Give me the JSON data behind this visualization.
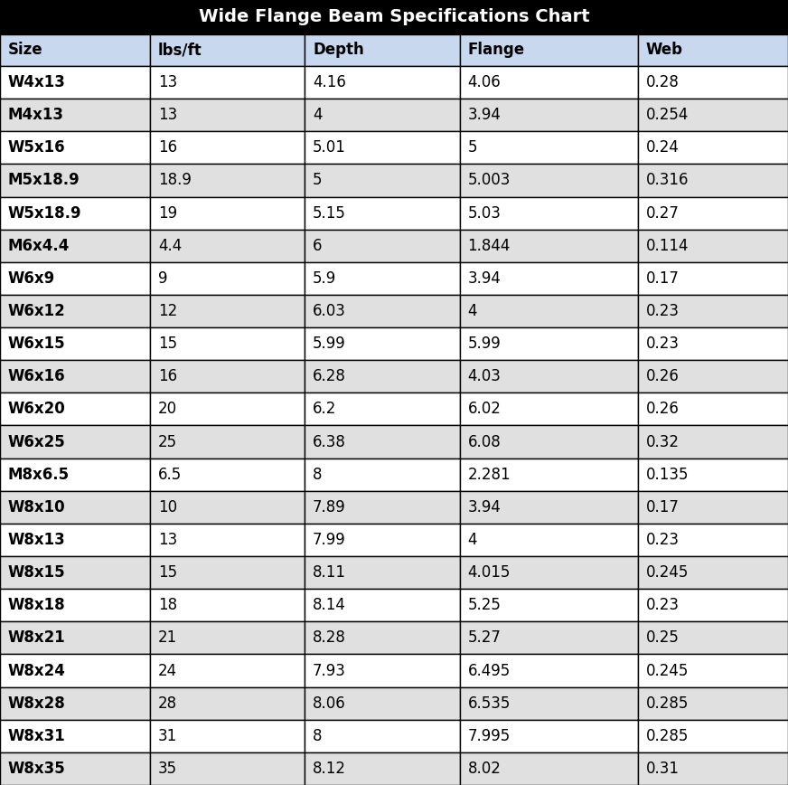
{
  "title": "Wide Flange Beam Specifications Chart",
  "columns": [
    "Size",
    "lbs/ft",
    "Depth",
    "Flange",
    "Web"
  ],
  "rows": [
    [
      "W4x13",
      "13",
      "4.16",
      "4.06",
      "0.28"
    ],
    [
      "M4x13",
      "13",
      "4",
      "3.94",
      "0.254"
    ],
    [
      "W5x16",
      "16",
      "5.01",
      "5",
      "0.24"
    ],
    [
      "M5x18.9",
      "18.9",
      "5",
      "5.003",
      "0.316"
    ],
    [
      "W5x18.9",
      "19",
      "5.15",
      "5.03",
      "0.27"
    ],
    [
      "M6x4.4",
      "4.4",
      "6",
      "1.844",
      "0.114"
    ],
    [
      "W6x9",
      "9",
      "5.9",
      "3.94",
      "0.17"
    ],
    [
      "W6x12",
      "12",
      "6.03",
      "4",
      "0.23"
    ],
    [
      "W6x15",
      "15",
      "5.99",
      "5.99",
      "0.23"
    ],
    [
      "W6x16",
      "16",
      "6.28",
      "4.03",
      "0.26"
    ],
    [
      "W6x20",
      "20",
      "6.2",
      "6.02",
      "0.26"
    ],
    [
      "W6x25",
      "25",
      "6.38",
      "6.08",
      "0.32"
    ],
    [
      "M8x6.5",
      "6.5",
      "8",
      "2.281",
      "0.135"
    ],
    [
      "W8x10",
      "10",
      "7.89",
      "3.94",
      "0.17"
    ],
    [
      "W8x13",
      "13",
      "7.99",
      "4",
      "0.23"
    ],
    [
      "W8x15",
      "15",
      "8.11",
      "4.015",
      "0.245"
    ],
    [
      "W8x18",
      "18",
      "8.14",
      "5.25",
      "0.23"
    ],
    [
      "W8x21",
      "21",
      "8.28",
      "5.27",
      "0.25"
    ],
    [
      "W8x24",
      "24",
      "7.93",
      "6.495",
      "0.245"
    ],
    [
      "W8x28",
      "28",
      "8.06",
      "6.535",
      "0.285"
    ],
    [
      "W8x31",
      "31",
      "8",
      "7.995",
      "0.285"
    ],
    [
      "W8x35",
      "35",
      "8.12",
      "8.02",
      "0.31"
    ]
  ],
  "title_bg": "#000000",
  "title_color": "#ffffff",
  "header_bg": "#c8d8ee",
  "header_color": "#000000",
  "row_bg_odd": "#ffffff",
  "row_bg_even": "#e0e0e0",
  "border_color": "#000000",
  "title_fontsize": 14,
  "header_fontsize": 12,
  "data_fontsize": 12,
  "fig_width": 8.72,
  "fig_height": 8.68,
  "dpi": 100
}
